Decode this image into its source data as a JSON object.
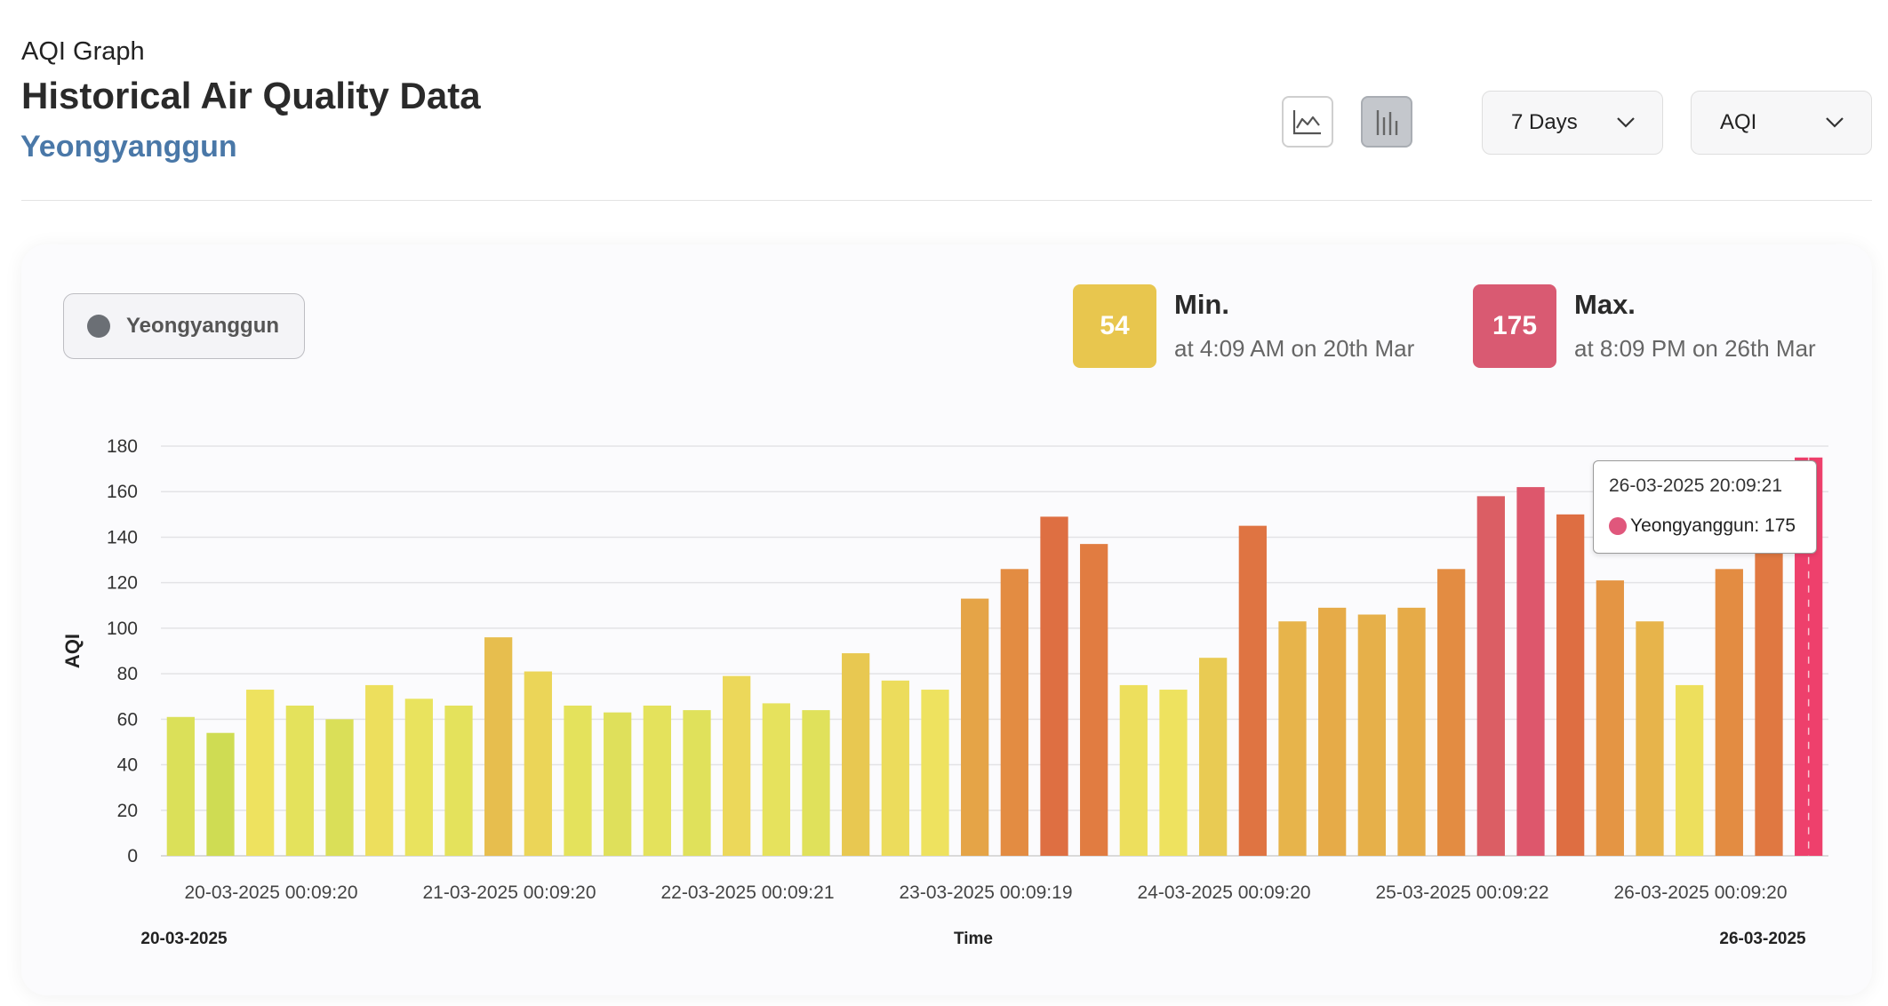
{
  "header": {
    "subtitle": "AQI Graph",
    "title": "Historical Air Quality Data",
    "location": "Yeongyanggun",
    "range_label": "7 Days",
    "metric_label": "AQI"
  },
  "legend": {
    "label": "Yeongyanggun",
    "color": "#6b6f75"
  },
  "stats": {
    "min": {
      "value": "54",
      "label": "Min.",
      "time": "at 4:09 AM on 20th Mar",
      "color": "#e8c64e"
    },
    "max": {
      "value": "175",
      "label": "Max.",
      "time": "at 8:09 PM on 26th Mar",
      "color": "#d95a72"
    }
  },
  "tooltip": {
    "title": "26-03-2025 20:09:21",
    "text": "Yeongyanggun: 175",
    "color": "#e0577c"
  },
  "chart_data": {
    "type": "bar",
    "title": "",
    "xlabel": "Time",
    "ylabel": "AQI",
    "ylim": [
      0,
      180
    ],
    "yticks": [
      0,
      20,
      40,
      60,
      80,
      100,
      120,
      140,
      160,
      180
    ],
    "grid": true,
    "x_tick_labels": [
      "20-03-2025 00:09:20",
      "21-03-2025 00:09:20",
      "22-03-2025 00:09:21",
      "23-03-2025 00:09:19",
      "24-03-2025 00:09:20",
      "25-03-2025 00:09:22",
      "26-03-2025 00:09:20"
    ],
    "x_start_label": "20-03-2025",
    "x_end_label": "26-03-2025",
    "series": [
      {
        "name": "Yeongyanggun",
        "values": [
          61,
          54,
          73,
          66,
          60,
          75,
          69,
          66,
          96,
          81,
          66,
          63,
          66,
          64,
          79,
          67,
          64,
          89,
          77,
          73,
          113,
          126,
          149,
          137,
          75,
          73,
          87,
          145,
          103,
          109,
          106,
          109,
          126,
          158,
          162,
          150,
          121,
          103,
          75,
          126,
          141,
          175
        ]
      }
    ]
  }
}
